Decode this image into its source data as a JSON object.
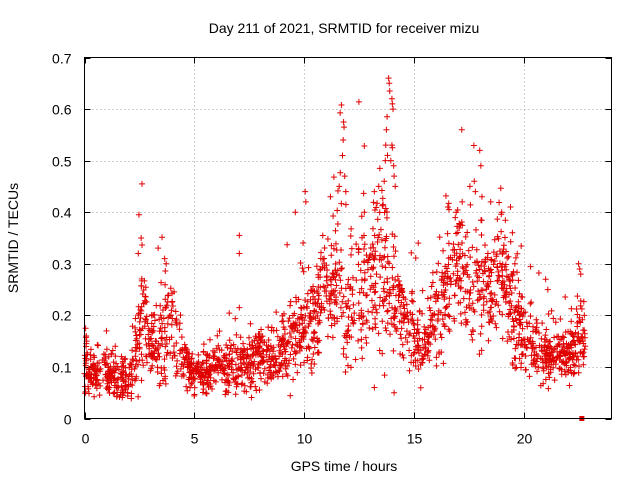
{
  "chart_data": {
    "type": "scatter",
    "title": "Day 211 of 2021, SRMTID for receiver mizu",
    "xlabel": "GPS time / hours",
    "ylabel": "SRMTID / TECUs",
    "xlim": [
      0,
      24
    ],
    "ylim": [
      0,
      0.7
    ],
    "xticks": [
      0,
      5,
      10,
      15,
      20
    ],
    "yticks": [
      0,
      0.1,
      0.2,
      0.3,
      0.4,
      0.5,
      0.6,
      0.7
    ],
    "xtick_labels": [
      "0",
      "5",
      "10",
      "15",
      "20"
    ],
    "ytick_labels": [
      "0",
      "0.1",
      "0.2",
      "0.3",
      "0.4",
      "0.5",
      "0.6",
      "0.7"
    ],
    "grid": true,
    "marker": "plus",
    "color": "#e00000",
    "series": [
      {
        "name": "SRMTID",
        "trend": {
          "x": [
            0,
            0.5,
            1,
            1.5,
            2,
            2.3,
            2.6,
            3,
            3.5,
            4,
            4.5,
            5,
            5.5,
            6,
            6.5,
            7,
            7.5,
            8,
            8.5,
            9,
            9.5,
            10,
            10.5,
            11,
            11.5,
            12,
            12.5,
            13,
            13.5,
            14,
            14.5,
            15,
            15.5,
            16,
            16.5,
            17,
            17.5,
            18,
            18.5,
            19,
            19.5,
            20,
            20.5,
            21,
            21.5,
            22,
            22.5,
            22.8
          ],
          "y": [
            0.1,
            0.08,
            0.085,
            0.075,
            0.07,
            0.12,
            0.2,
            0.14,
            0.15,
            0.18,
            0.11,
            0.09,
            0.09,
            0.1,
            0.1,
            0.1,
            0.11,
            0.13,
            0.12,
            0.13,
            0.16,
            0.18,
            0.2,
            0.26,
            0.24,
            0.22,
            0.24,
            0.27,
            0.3,
            0.25,
            0.2,
            0.17,
            0.13,
            0.2,
            0.27,
            0.3,
            0.24,
            0.27,
            0.22,
            0.28,
            0.2,
            0.16,
            0.15,
            0.12,
            0.13,
            0.13,
            0.15,
            0.16
          ],
          "spread": [
            0.035,
            0.03,
            0.03,
            0.025,
            0.025,
            0.05,
            0.07,
            0.05,
            0.06,
            0.06,
            0.035,
            0.03,
            0.03,
            0.03,
            0.035,
            0.035,
            0.04,
            0.04,
            0.04,
            0.045,
            0.05,
            0.06,
            0.06,
            0.08,
            0.1,
            0.08,
            0.09,
            0.1,
            0.12,
            0.1,
            0.06,
            0.05,
            0.04,
            0.07,
            0.08,
            0.08,
            0.09,
            0.08,
            0.07,
            0.08,
            0.07,
            0.05,
            0.05,
            0.04,
            0.035,
            0.035,
            0.05,
            0.04
          ]
        },
        "points": [
          [
            2.48,
            0.395
          ],
          [
            2.62,
            0.455
          ],
          [
            2.58,
            0.35
          ],
          [
            2.45,
            0.32
          ],
          [
            3.65,
            0.31
          ],
          [
            3.72,
            0.3
          ],
          [
            7.05,
            0.355
          ],
          [
            7.05,
            0.32
          ],
          [
            7.05,
            0.215
          ],
          [
            10.05,
            0.44
          ],
          [
            10.08,
            0.42
          ],
          [
            9.6,
            0.4
          ],
          [
            11.2,
            0.43
          ],
          [
            11.6,
            0.45
          ],
          [
            11.8,
            0.575
          ],
          [
            11.82,
            0.565
          ],
          [
            11.78,
            0.54
          ],
          [
            11.75,
            0.51
          ],
          [
            11.85,
            0.47
          ],
          [
            11.9,
            0.44
          ],
          [
            13.2,
            0.44
          ],
          [
            13.4,
            0.45
          ],
          [
            13.65,
            0.46
          ],
          [
            13.7,
            0.5
          ],
          [
            13.72,
            0.53
          ],
          [
            13.75,
            0.56
          ],
          [
            13.78,
            0.585
          ],
          [
            13.85,
            0.66
          ],
          [
            13.88,
            0.65
          ],
          [
            13.9,
            0.635
          ],
          [
            14.0,
            0.62
          ],
          [
            14.02,
            0.61
          ],
          [
            14.05,
            0.6
          ],
          [
            14.0,
            0.53
          ],
          [
            14.02,
            0.525
          ],
          [
            13.95,
            0.5
          ],
          [
            14.08,
            0.49
          ],
          [
            14.1,
            0.47
          ],
          [
            14.15,
            0.45
          ],
          [
            14.1,
            0.05
          ],
          [
            13.2,
            0.06
          ],
          [
            15.2,
            0.34
          ],
          [
            16.55,
            0.41
          ],
          [
            16.6,
            0.405
          ],
          [
            17.2,
            0.42
          ],
          [
            17.55,
            0.45
          ],
          [
            17.75,
            0.46
          ],
          [
            17.8,
            0.44
          ],
          [
            18.0,
            0.52
          ],
          [
            18.05,
            0.49
          ],
          [
            18.1,
            0.43
          ],
          [
            18.5,
            0.42
          ],
          [
            19.0,
            0.4
          ],
          [
            19.4,
            0.41
          ],
          [
            19.6,
            0.3
          ],
          [
            19.5,
            0.28
          ],
          [
            21.0,
            0.27
          ],
          [
            21.1,
            0.25
          ],
          [
            22.5,
            0.3
          ],
          [
            22.55,
            0.29
          ],
          [
            22.6,
            0.28
          ],
          [
            22.7,
            0.15
          ],
          [
            22.75,
            0.12
          ],
          [
            22.8,
            0.14
          ],
          [
            0.05,
            0.175
          ],
          [
            0.08,
            0.16
          ],
          [
            0.1,
            0.15
          ],
          [
            1.0,
            0.17
          ],
          [
            1.4,
            0.14
          ]
        ]
      }
    ],
    "end_marker": {
      "x": 22.65,
      "y": 0.0
    }
  }
}
